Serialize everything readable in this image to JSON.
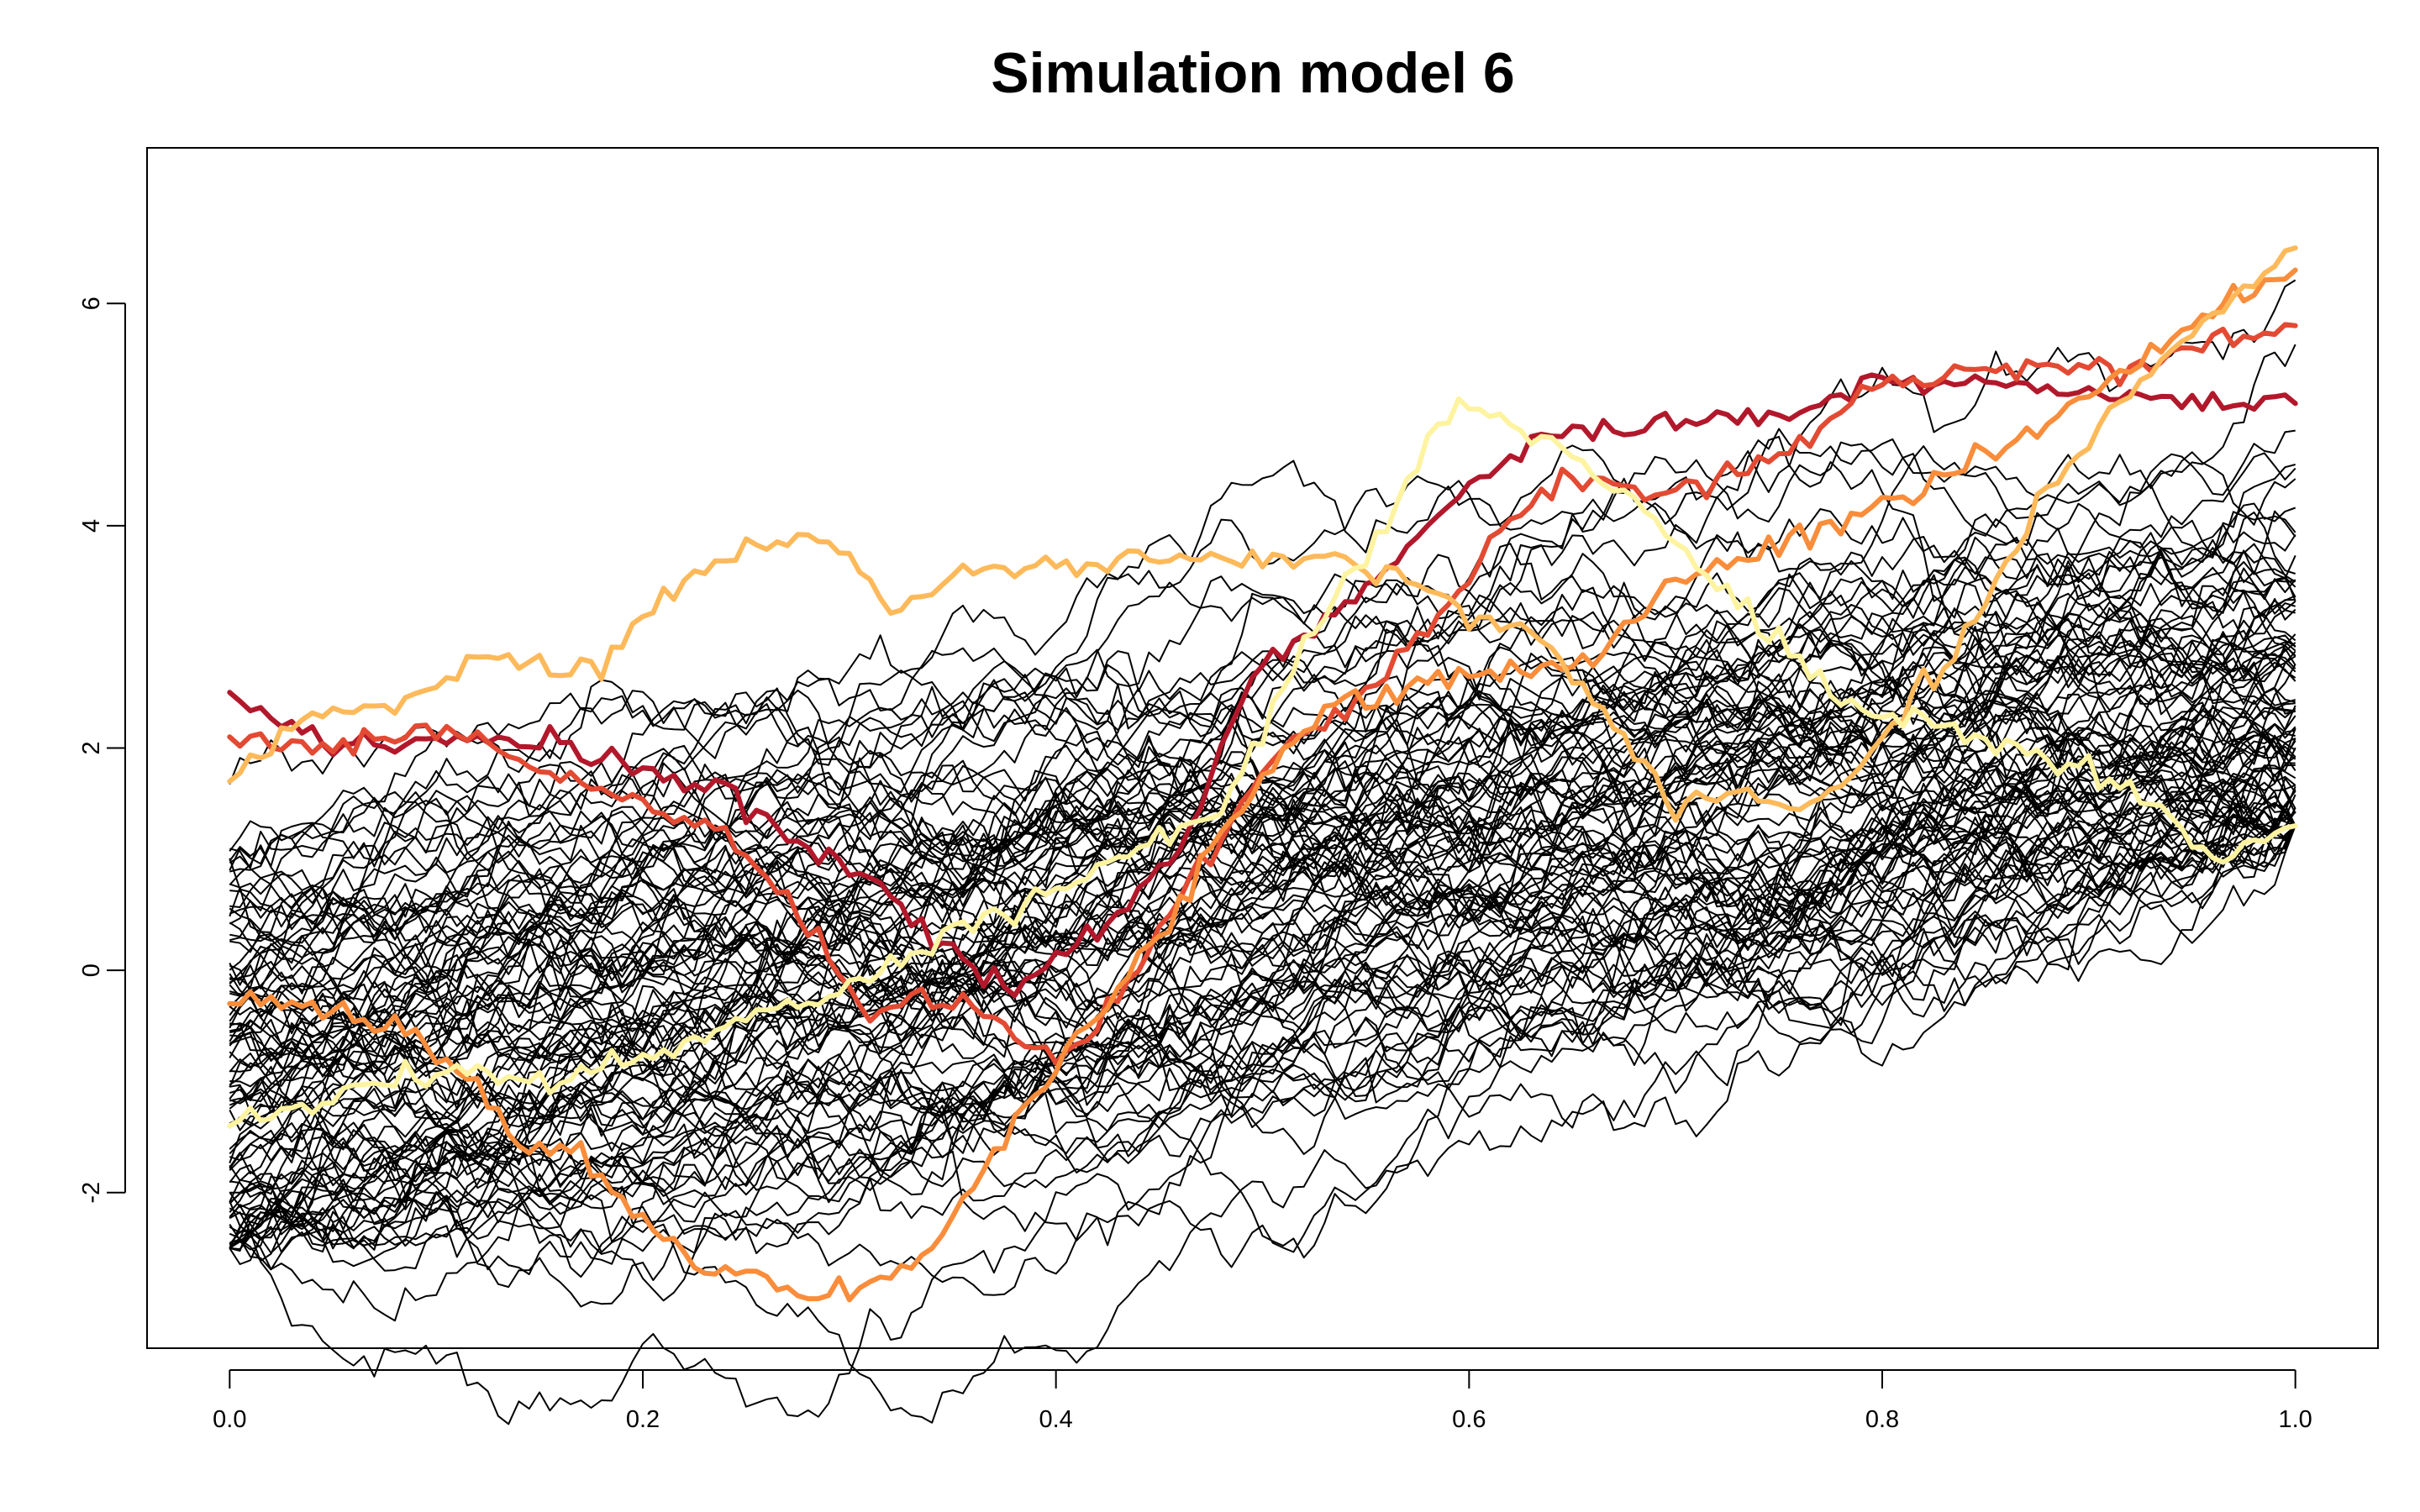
{
  "chart_data": {
    "type": "line",
    "title": "Simulation model 6",
    "xlabel": "",
    "ylabel": "",
    "xlim": [
      -0.04,
      1.04
    ],
    "ylim": [
      -3.4,
      7.4
    ],
    "x_ticks": [
      0.0,
      0.2,
      0.4,
      0.6,
      0.8,
      1.0
    ],
    "x_tick_labels": [
      "0.0",
      "0.2",
      "0.4",
      "0.6",
      "0.8",
      "1.0"
    ],
    "y_ticks": [
      -2,
      0,
      2,
      4,
      6
    ],
    "y_tick_labels": [
      "-2",
      "0",
      "2",
      "4",
      "6"
    ],
    "grid": false,
    "legend": "none",
    "background_paths": {
      "count": 100,
      "color": "#000000",
      "points_per_path": 201,
      "x_range": [
        0,
        1
      ],
      "start_range": [
        -2.5,
        2.8
      ],
      "end_range": [
        1.3,
        6.9
      ],
      "approx_mean_slope": 3.3
    },
    "series": [
      {
        "color": "#b2182b",
        "x": [
          0.0,
          0.03,
          0.05,
          0.1,
          0.15,
          0.2,
          0.24,
          0.28,
          0.32,
          0.34,
          0.36,
          0.38,
          0.41,
          0.44,
          0.46,
          0.48,
          0.5,
          0.53,
          0.56,
          0.58,
          0.6,
          0.63,
          0.66,
          0.7,
          0.75,
          0.8,
          0.85,
          0.9,
          0.95,
          1.0
        ],
        "values": [
          2.5,
          2.2,
          2.0,
          2.1,
          2.1,
          1.8,
          1.6,
          1.1,
          0.7,
          0.3,
          0.0,
          -0.1,
          0.2,
          0.7,
          1.1,
          2.0,
          2.8,
          3.2,
          3.6,
          4.0,
          4.4,
          4.7,
          4.9,
          4.9,
          5.0,
          5.3,
          5.3,
          5.2,
          5.1,
          5.1
        ]
      },
      {
        "color": "#e34a33",
        "x": [
          0.0,
          0.05,
          0.1,
          0.15,
          0.2,
          0.25,
          0.28,
          0.3,
          0.31,
          0.33,
          0.36,
          0.38,
          0.4,
          0.43,
          0.46,
          0.48,
          0.5,
          0.53,
          0.56,
          0.6,
          0.62,
          0.65,
          0.7,
          0.75,
          0.8,
          0.85,
          0.9,
          0.95,
          1.0
        ],
        "values": [
          2.1,
          2.0,
          2.2,
          1.8,
          1.5,
          1.1,
          0.4,
          -0.2,
          -0.5,
          -0.2,
          -0.3,
          -0.6,
          -0.8,
          -0.3,
          0.7,
          1.2,
          1.9,
          2.2,
          2.7,
          3.5,
          4.1,
          4.4,
          4.3,
          4.6,
          5.3,
          5.4,
          5.4,
          5.6,
          5.8
        ]
      },
      {
        "color": "#f98d3b",
        "x": [
          0.0,
          0.03,
          0.06,
          0.09,
          0.12,
          0.14,
          0.17,
          0.2,
          0.23,
          0.26,
          0.28,
          0.3,
          0.32,
          0.34,
          0.36,
          0.38,
          0.4,
          0.43,
          0.46,
          0.48,
          0.5,
          0.53,
          0.56,
          0.6,
          0.63,
          0.66,
          0.7,
          0.75,
          0.8,
          0.85,
          0.9,
          0.95,
          1.0
        ],
        "values": [
          -0.3,
          -0.3,
          -0.4,
          -0.5,
          -1.0,
          -1.6,
          -1.6,
          -2.3,
          -2.7,
          -2.8,
          -2.9,
          -2.9,
          -2.8,
          -2.5,
          -2.0,
          -1.3,
          -0.9,
          -0.2,
          0.6,
          1.2,
          1.7,
          2.3,
          2.5,
          2.7,
          2.7,
          2.8,
          3.5,
          3.8,
          4.2,
          4.6,
          5.2,
          5.8,
          6.3
        ]
      },
      {
        "color": "#fdb95a",
        "x": [
          0.0,
          0.04,
          0.08,
          0.12,
          0.16,
          0.18,
          0.2,
          0.23,
          0.26,
          0.28,
          0.3,
          0.32,
          0.34,
          0.37,
          0.4,
          0.44,
          0.48,
          0.52,
          0.56,
          0.6,
          0.63,
          0.66,
          0.7,
          0.73,
          0.76,
          0.78,
          0.8,
          0.84,
          0.88,
          0.92,
          0.96,
          1.0
        ],
        "values": [
          1.7,
          2.3,
          2.4,
          2.8,
          2.7,
          2.7,
          3.2,
          3.6,
          3.9,
          3.9,
          3.7,
          3.3,
          3.4,
          3.6,
          3.6,
          3.7,
          3.7,
          3.7,
          3.6,
          3.2,
          3.1,
          2.4,
          1.5,
          1.6,
          1.5,
          1.6,
          2.1,
          3.0,
          4.3,
          5.2,
          5.9,
          6.5
        ]
      },
      {
        "color": "#fef3a0",
        "x": [
          0.0,
          0.04,
          0.08,
          0.12,
          0.16,
          0.2,
          0.24,
          0.28,
          0.32,
          0.36,
          0.4,
          0.44,
          0.48,
          0.5,
          0.52,
          0.54,
          0.56,
          0.58,
          0.6,
          0.63,
          0.66,
          0.68,
          0.7,
          0.73,
          0.76,
          0.79,
          0.82,
          0.86,
          0.9,
          0.93,
          0.96,
          1.0
        ],
        "values": [
          -1.4,
          -1.2,
          -1.0,
          -0.9,
          -1.0,
          -0.8,
          -0.5,
          -0.3,
          0.0,
          0.4,
          0.7,
          1.1,
          1.4,
          2.2,
          2.9,
          3.5,
          4.0,
          4.8,
          5.1,
          4.8,
          4.5,
          4.2,
          3.8,
          3.3,
          2.8,
          2.3,
          2.2,
          2.0,
          1.8,
          1.5,
          1.0,
          1.3
        ]
      }
    ]
  }
}
